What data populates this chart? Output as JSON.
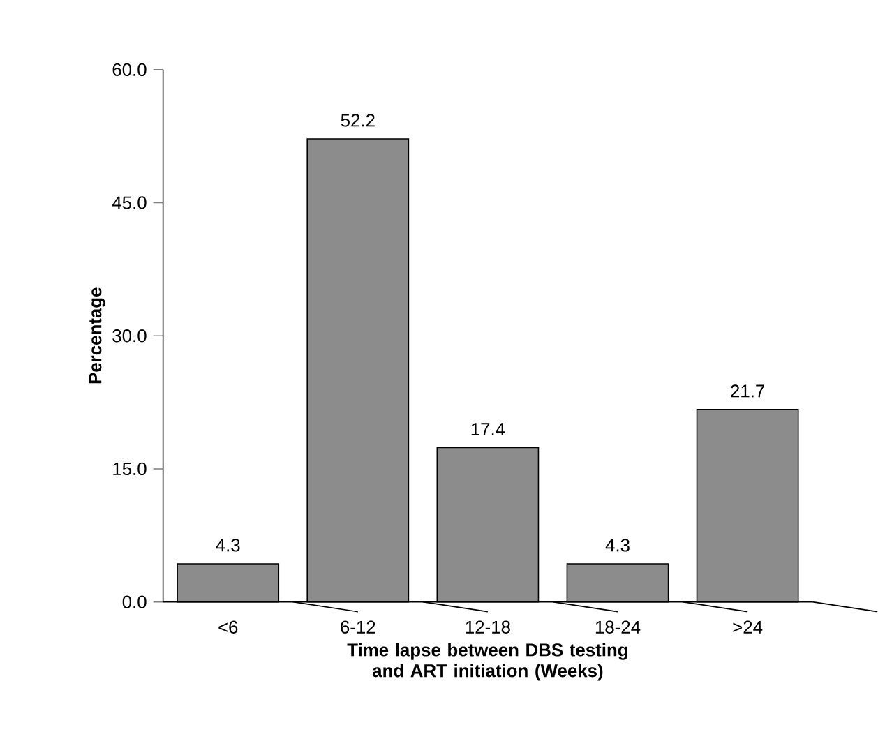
{
  "chart_data": {
    "type": "bar",
    "xlabel": "Time lapse between DBS testing and ART initiation (Weeks)",
    "ylabel": "Percentage",
    "categories": [
      "<6",
      "6-12",
      "12-18",
      "18-24",
      ">24"
    ],
    "values": [
      4.3,
      52.2,
      17.4,
      4.3,
      21.7
    ],
    "color": "#8c8c8c",
    "data_labels": true,
    "ylim": [
      0,
      60
    ],
    "yticks": [
      {
        "value": 0,
        "label": "0.0"
      },
      {
        "value": 15,
        "label": "15.0"
      },
      {
        "value": 30,
        "label": "30.0"
      },
      {
        "value": 45,
        "label": "45.0"
      },
      {
        "value": 60,
        "label": "60.0"
      }
    ]
  }
}
